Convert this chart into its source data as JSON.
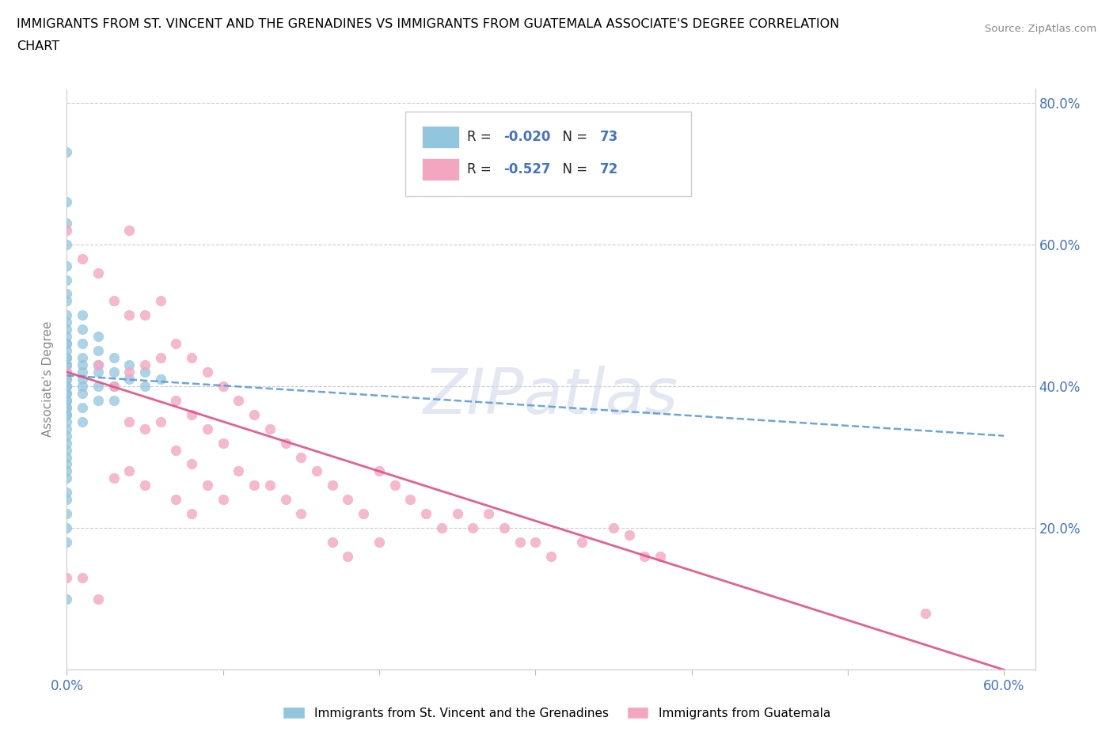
{
  "title_line1": "IMMIGRANTS FROM ST. VINCENT AND THE GRENADINES VS IMMIGRANTS FROM GUATEMALA ASSOCIATE'S DEGREE CORRELATION",
  "title_line2": "CHART",
  "source": "Source: ZipAtlas.com",
  "ylabel": "Associate's Degree",
  "xlim": [
    0.0,
    0.62
  ],
  "ylim": [
    0.0,
    0.82
  ],
  "xticks": [
    0.0,
    0.1,
    0.2,
    0.3,
    0.4,
    0.5,
    0.6
  ],
  "xticklabels": [
    "0.0%",
    "",
    "",
    "",
    "",
    "",
    "60.0%"
  ],
  "yticks": [
    0.0,
    0.2,
    0.4,
    0.6,
    0.8
  ],
  "yticklabels": [
    "",
    "20.0%",
    "40.0%",
    "60.0%",
    "80.0%"
  ],
  "series1_color": "#92c5de",
  "series2_color": "#f4a6c0",
  "trendline1_color": "#5b9bd5",
  "trendline2_color": "#e05080",
  "R1": -0.02,
  "N1": 73,
  "R2": -0.527,
  "N2": 72,
  "watermark": "ZIPatlas",
  "legend_label1": "Immigrants from St. Vincent and the Grenadines",
  "legend_label2": "Immigrants from Guatemala",
  "series1_x": [
    0.0,
    0.0,
    0.0,
    0.0,
    0.0,
    0.0,
    0.0,
    0.0,
    0.0,
    0.0,
    0.0,
    0.0,
    0.0,
    0.0,
    0.0,
    0.0,
    0.0,
    0.0,
    0.0,
    0.0,
    0.0,
    0.0,
    0.0,
    0.0,
    0.0,
    0.0,
    0.0,
    0.0,
    0.0,
    0.0,
    0.0,
    0.0,
    0.0,
    0.0,
    0.0,
    0.0,
    0.0,
    0.0,
    0.0,
    0.0,
    0.0,
    0.0,
    0.0,
    0.0,
    0.0,
    0.0,
    0.0,
    0.01,
    0.01,
    0.01,
    0.01,
    0.01,
    0.01,
    0.01,
    0.01,
    0.01,
    0.01,
    0.01,
    0.02,
    0.02,
    0.02,
    0.02,
    0.02,
    0.02,
    0.03,
    0.03,
    0.03,
    0.03,
    0.04,
    0.04,
    0.05,
    0.05,
    0.06
  ],
  "series1_y": [
    0.73,
    0.66,
    0.63,
    0.6,
    0.57,
    0.55,
    0.53,
    0.52,
    0.5,
    0.49,
    0.48,
    0.47,
    0.46,
    0.46,
    0.45,
    0.44,
    0.44,
    0.43,
    0.43,
    0.42,
    0.41,
    0.41,
    0.4,
    0.4,
    0.39,
    0.39,
    0.38,
    0.38,
    0.37,
    0.37,
    0.36,
    0.36,
    0.35,
    0.34,
    0.33,
    0.32,
    0.31,
    0.3,
    0.29,
    0.28,
    0.27,
    0.25,
    0.24,
    0.22,
    0.2,
    0.18,
    0.1,
    0.5,
    0.48,
    0.46,
    0.44,
    0.43,
    0.42,
    0.41,
    0.4,
    0.39,
    0.37,
    0.35,
    0.47,
    0.45,
    0.43,
    0.42,
    0.4,
    0.38,
    0.44,
    0.42,
    0.4,
    0.38,
    0.43,
    0.41,
    0.42,
    0.4,
    0.41
  ],
  "series2_x": [
    0.0,
    0.0,
    0.0,
    0.01,
    0.01,
    0.02,
    0.02,
    0.02,
    0.03,
    0.03,
    0.03,
    0.04,
    0.04,
    0.04,
    0.04,
    0.04,
    0.05,
    0.05,
    0.05,
    0.05,
    0.06,
    0.06,
    0.06,
    0.07,
    0.07,
    0.07,
    0.07,
    0.08,
    0.08,
    0.08,
    0.08,
    0.09,
    0.09,
    0.09,
    0.1,
    0.1,
    0.1,
    0.11,
    0.11,
    0.12,
    0.12,
    0.13,
    0.13,
    0.14,
    0.14,
    0.15,
    0.15,
    0.16,
    0.17,
    0.17,
    0.18,
    0.18,
    0.19,
    0.2,
    0.2,
    0.21,
    0.22,
    0.23,
    0.24,
    0.25,
    0.26,
    0.27,
    0.28,
    0.29,
    0.3,
    0.31,
    0.33,
    0.35,
    0.36,
    0.37,
    0.38,
    0.55
  ],
  "series2_y": [
    0.62,
    0.42,
    0.13,
    0.58,
    0.13,
    0.56,
    0.43,
    0.1,
    0.52,
    0.4,
    0.27,
    0.62,
    0.5,
    0.42,
    0.35,
    0.28,
    0.5,
    0.43,
    0.34,
    0.26,
    0.52,
    0.44,
    0.35,
    0.46,
    0.38,
    0.31,
    0.24,
    0.44,
    0.36,
    0.29,
    0.22,
    0.42,
    0.34,
    0.26,
    0.4,
    0.32,
    0.24,
    0.38,
    0.28,
    0.36,
    0.26,
    0.34,
    0.26,
    0.32,
    0.24,
    0.3,
    0.22,
    0.28,
    0.26,
    0.18,
    0.24,
    0.16,
    0.22,
    0.28,
    0.18,
    0.26,
    0.24,
    0.22,
    0.2,
    0.22,
    0.2,
    0.22,
    0.2,
    0.18,
    0.18,
    0.16,
    0.18,
    0.2,
    0.19,
    0.16,
    0.16,
    0.08
  ],
  "trendline1_x_start": 0.0,
  "trendline1_x_end": 0.6,
  "trendline1_y_start": 0.415,
  "trendline1_y_end": 0.33,
  "trendline2_x_start": 0.0,
  "trendline2_x_end": 0.6,
  "trendline2_y_start": 0.42,
  "trendline2_y_end": 0.0
}
